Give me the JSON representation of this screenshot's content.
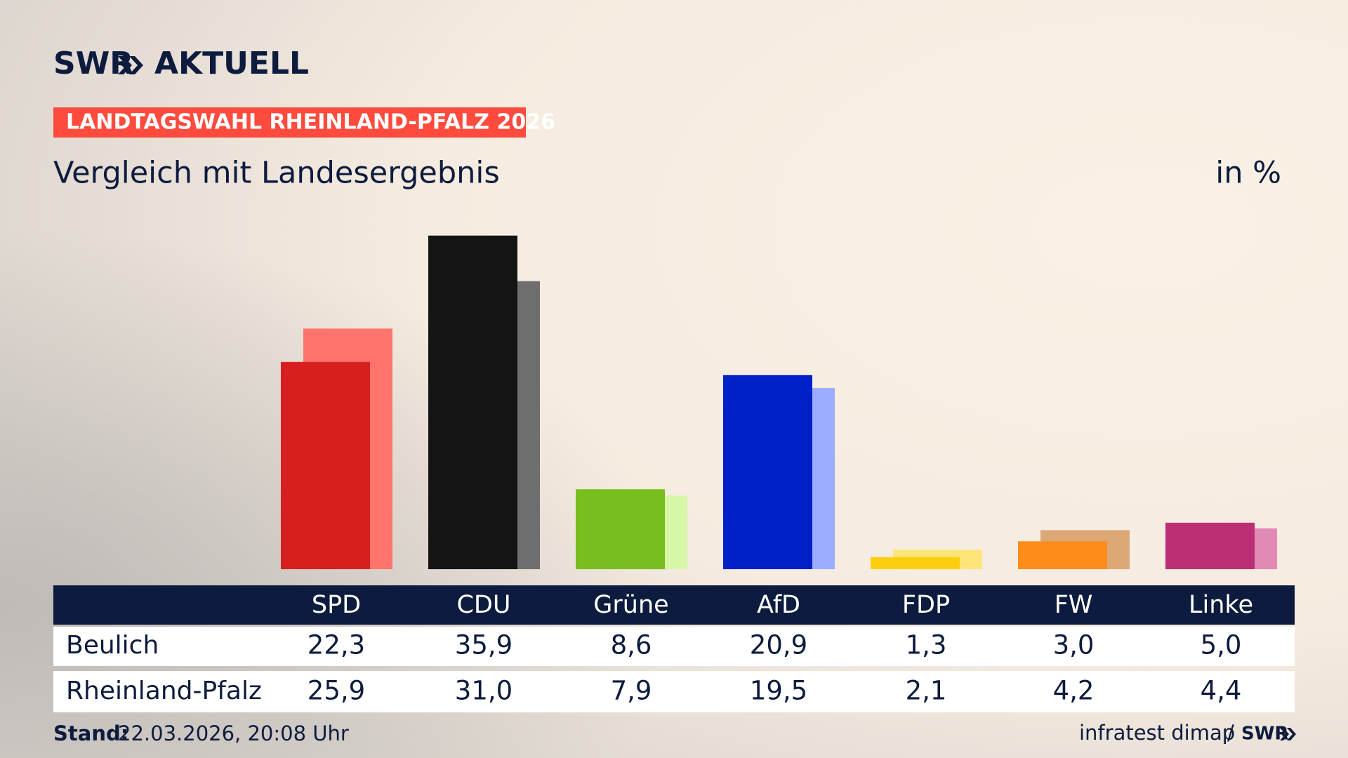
{
  "logo": {
    "brand": "SWR",
    "product": "AKTUELL"
  },
  "badge": "LANDTAGSWAHL RHEINLAND-PFALZ 2026",
  "chart_data": {
    "type": "bar",
    "title": "Vergleich mit Landesergebnis",
    "unit_label": "in %",
    "categories": [
      "SPD",
      "CDU",
      "Grüne",
      "AfD",
      "FDP",
      "FW",
      "Linke"
    ],
    "series": [
      {
        "name": "Beulich",
        "colors": [
          "#d71f1f",
          "#141414",
          "#78be1e",
          "#0021c8",
          "#fccf0d",
          "#fd8c1b",
          "#bb2f74"
        ],
        "values": [
          22.3,
          35.9,
          8.6,
          20.9,
          1.3,
          3.0,
          5.0
        ],
        "value_labels": [
          "22,3",
          "35,9",
          "8,6",
          "20,9",
          "1,3",
          "3,0",
          "5,0"
        ]
      },
      {
        "name": "Rheinland-Pfalz",
        "colors": [
          "#ff756b",
          "#6f6e6e",
          "#d6f6a8",
          "#9cacfe",
          "#fde57a",
          "#dca876",
          "#e08ab5"
        ],
        "values": [
          25.9,
          31.0,
          7.9,
          19.5,
          2.1,
          4.2,
          4.4
        ],
        "value_labels": [
          "25,9",
          "31,0",
          "7,9",
          "19,5",
          "2,1",
          "4,2",
          "4,4"
        ]
      }
    ]
  },
  "footer": {
    "stand_label": "Stand:",
    "stand_value": "22.03.2026, 20:08 Uhr",
    "source": "infratest dimap",
    "separator": "/"
  }
}
